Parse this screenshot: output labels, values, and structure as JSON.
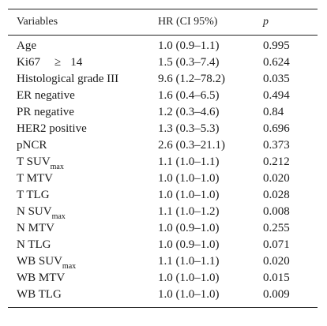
{
  "table": {
    "headers": {
      "variables": "Variables",
      "hr": "HR (CI 95%)",
      "p": "p"
    },
    "rows": [
      {
        "main": "Age",
        "sub": "",
        "hr": "1.0 (0.9–1.1)",
        "p": "0.995"
      },
      {
        "main": "Ki67",
        "sub": "",
        "hr": "1.5 (0.3–7.4)",
        "p": "0.624"
      },
      {
        "main": "Histological grade III",
        "sub": "",
        "hr": "9.6 (1.2–78.2)",
        "p": "0.035"
      },
      {
        "main": "ER negative",
        "sub": "",
        "hr": "1.6 (0.4–6.5)",
        "p": "0.494"
      },
      {
        "main": "PR negative",
        "sub": "",
        "hr": "1.2 (0.3–4.6)",
        "p": "0.84"
      },
      {
        "main": "HER2 positive",
        "sub": "",
        "hr": "1.3 (0.3–5.3)",
        "p": "0.696"
      },
      {
        "main": "pNCR",
        "sub": "",
        "hr": "2.6 (0.3–21.1)",
        "p": "0.373"
      },
      {
        "main": "T SUV",
        "sub": "max",
        "hr": "1.1 (1.0–1.1)",
        "p": "0.212"
      },
      {
        "main": "T MTV",
        "sub": "",
        "hr": "1.0 (1.0–1.0)",
        "p": "0.020"
      },
      {
        "main": "T TLG",
        "sub": "",
        "hr": "1.0 (1.0–1.0)",
        "p": "0.028"
      },
      {
        "main": "N SUV",
        "sub": "max",
        "hr": "1.1 (1.0–1.2)",
        "p": "0.008"
      },
      {
        "main": "N MTV",
        "sub": "",
        "hr": "1.0 (0.9–1.0)",
        "p": "0.255"
      },
      {
        "main": "N TLG",
        "sub": "",
        "hr": "1.0 (0.9–1.0)",
        "p": "0.071"
      },
      {
        "main": "WB SUV",
        "sub": "max",
        "hr": "1.1 (1.0–1.1)",
        "p": "0.020"
      },
      {
        "main": "WB MTV",
        "sub": "",
        "hr": "1.0 (1.0–1.0)",
        "p": "0.015"
      },
      {
        "main": "WB TLG",
        "sub": "",
        "hr": "1.0 (1.0–1.0)",
        "p": "0.009"
      }
    ],
    "ki67_suffix": {
      "symbol": "≥",
      "value": "14"
    }
  }
}
